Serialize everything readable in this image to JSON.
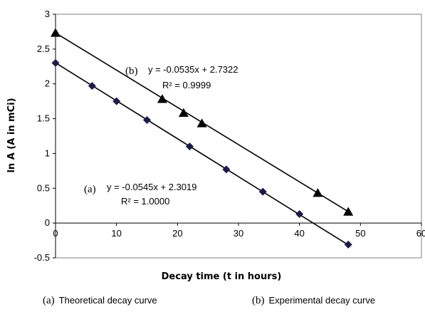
{
  "chart_data": {
    "type": "scatter",
    "xlabel": "Decay time (t in hours)",
    "ylabel": "ln A (A in mCi)",
    "xlim": [
      0,
      60
    ],
    "ylim": [
      -0.5,
      3
    ],
    "x_ticks": [
      "0",
      "10",
      "20",
      "30",
      "40",
      "50",
      "60"
    ],
    "y_ticks": [
      "-0.5",
      "0",
      "0.5",
      "1",
      "1.5",
      "2",
      "2.5",
      "3"
    ],
    "grid": false,
    "series": [
      {
        "tag": "(a)",
        "marker": "diamond",
        "color": "#1a1a4e",
        "x": [
          0,
          6,
          10,
          15,
          22,
          28,
          34,
          40,
          48
        ],
        "y": [
          2.3,
          1.97,
          1.75,
          1.48,
          1.1,
          0.77,
          0.45,
          0.13,
          -0.31
        ],
        "trendline": {
          "slope": -0.0545,
          "intercept": 2.3019,
          "x_range": [
            0,
            48
          ]
        },
        "equation": "y = -0.0545x + 2.3019",
        "r2": "R² = 1.0000"
      },
      {
        "tag": "(b)",
        "marker": "triangle",
        "color": "#000000",
        "x": [
          0,
          17.5,
          21,
          24,
          43,
          48
        ],
        "y": [
          2.73,
          1.78,
          1.58,
          1.43,
          0.43,
          0.16
        ],
        "trendline": {
          "slope": -0.0535,
          "intercept": 2.7322,
          "x_range": [
            0,
            48
          ]
        },
        "equation": "y = -0.0535x + 2.7322",
        "r2": "R² = 0.9999"
      }
    ]
  },
  "captions": [
    {
      "tag": "(a)",
      "text": "Theoretical decay curve"
    },
    {
      "tag": "(b)",
      "text": "Experimental decay curve"
    }
  ]
}
